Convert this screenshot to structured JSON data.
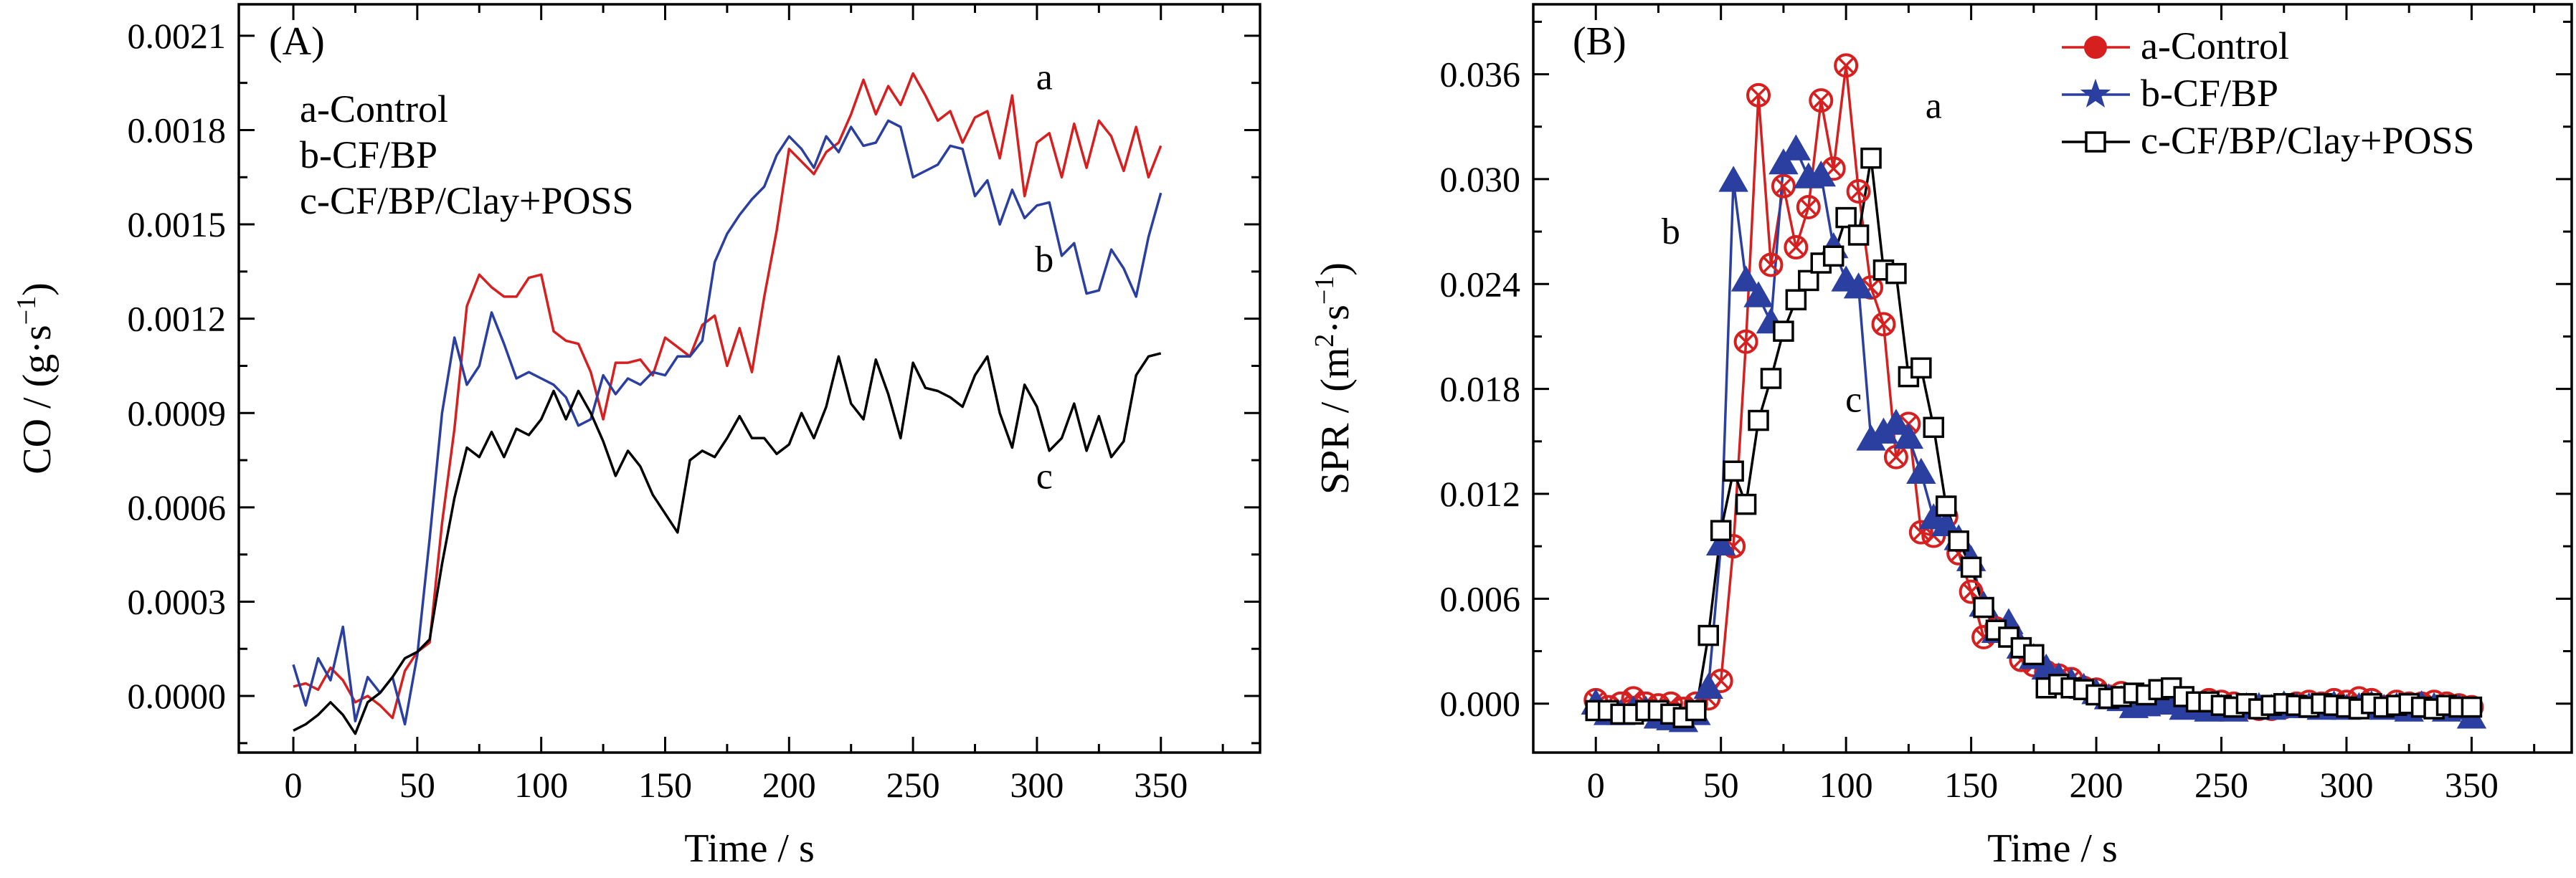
{
  "chart_data": [
    {
      "type": "line",
      "panel_label": "(A)",
      "xlabel": "Time / s",
      "ylabel_main": "CO / (g·s",
      "ylabel_sup": "−1",
      "ylabel_end": ")",
      "xlim": [
        -22,
        390
      ],
      "ylim": [
        -0.00018,
        0.0022
      ],
      "x_ticks": [
        0,
        50,
        100,
        150,
        200,
        250,
        300,
        350
      ],
      "x_tick_labels": [
        "0",
        "50",
        "100",
        "150",
        "200",
        "250",
        "300",
        "350"
      ],
      "y_ticks": [
        0.0,
        0.0003,
        0.0006,
        0.0009,
        0.0012,
        0.0015,
        0.0018,
        0.0021
      ],
      "y_tick_labels": [
        "0.0000",
        "0.0003",
        "0.0006",
        "0.0009",
        "0.0012",
        "0.0015",
        "0.0018",
        "0.0021"
      ],
      "grid": false,
      "legend_placement": "top-left",
      "legend": [
        "a-Control",
        "b-CF/BP",
        "c-CF/BP/Clay+POSS"
      ],
      "curve_labels": [
        {
          "text": "a",
          "x": 303,
          "y": 0.00193
        },
        {
          "text": "b",
          "x": 303,
          "y": 0.00135
        },
        {
          "text": "c",
          "x": 303,
          "y": 0.00066
        }
      ],
      "series": [
        {
          "color": "#d62020",
          "x": [
            0,
            5,
            10,
            15,
            20,
            25,
            30,
            35,
            40,
            45,
            50,
            55,
            60,
            65,
            70,
            75,
            80,
            85,
            90,
            95,
            100,
            105,
            110,
            115,
            120,
            125,
            130,
            135,
            140,
            145,
            150,
            155,
            160,
            165,
            170,
            175,
            180,
            185,
            190,
            195,
            200,
            205,
            210,
            215,
            220,
            225,
            230,
            235,
            240,
            245,
            250,
            255,
            260,
            265,
            270,
            275,
            280,
            285,
            290,
            295,
            300,
            305,
            310,
            315,
            320,
            325,
            330,
            335,
            340,
            345,
            350
          ],
          "y": [
            3e-05,
            4e-05,
            2e-05,
            9e-05,
            5e-05,
            -2e-05,
            0.0,
            -3e-05,
            -7e-05,
            8e-05,
            0.00014,
            0.00017,
            0.00055,
            0.00085,
            0.00124,
            0.00134,
            0.0013,
            0.00127,
            0.00127,
            0.00133,
            0.00134,
            0.00116,
            0.00113,
            0.00112,
            0.00103,
            0.00088,
            0.00106,
            0.00106,
            0.00107,
            0.00102,
            0.00114,
            0.00111,
            0.00108,
            0.00118,
            0.00121,
            0.00105,
            0.00117,
            0.00103,
            0.00127,
            0.00148,
            0.00174,
            0.0017,
            0.00166,
            0.00173,
            0.00176,
            0.00185,
            0.00196,
            0.00185,
            0.00194,
            0.00188,
            0.00198,
            0.00191,
            0.00183,
            0.00186,
            0.00176,
            0.00184,
            0.00186,
            0.00171,
            0.00191,
            0.00159,
            0.00176,
            0.00179,
            0.00165,
            0.00182,
            0.00168,
            0.00183,
            0.00178,
            0.00167,
            0.00181,
            0.00165,
            0.00175
          ]
        },
        {
          "color": "#2a3fa0",
          "x": [
            0,
            5,
            10,
            15,
            20,
            25,
            30,
            35,
            40,
            45,
            50,
            55,
            60,
            65,
            70,
            75,
            80,
            85,
            90,
            95,
            100,
            105,
            110,
            115,
            120,
            125,
            130,
            135,
            140,
            145,
            150,
            155,
            160,
            165,
            170,
            175,
            180,
            185,
            190,
            195,
            200,
            205,
            210,
            215,
            220,
            225,
            230,
            235,
            240,
            245,
            250,
            255,
            260,
            265,
            270,
            275,
            280,
            285,
            290,
            295,
            300,
            305,
            310,
            315,
            320,
            325,
            330,
            335,
            340,
            345,
            350
          ],
          "y": [
            0.0001,
            -3e-05,
            0.00012,
            5e-05,
            0.00022,
            -8e-05,
            6e-05,
            1e-05,
            6e-05,
            -9e-05,
            0.00013,
            0.0005,
            0.0009,
            0.00114,
            0.00099,
            0.00105,
            0.00122,
            0.00112,
            0.00101,
            0.00103,
            0.00101,
            0.00099,
            0.00095,
            0.00086,
            0.00088,
            0.00102,
            0.00096,
            0.00101,
            0.00099,
            0.00103,
            0.00102,
            0.00108,
            0.00108,
            0.00113,
            0.00138,
            0.00147,
            0.00153,
            0.00158,
            0.00162,
            0.00172,
            0.00178,
            0.00174,
            0.00168,
            0.00178,
            0.00173,
            0.00181,
            0.00175,
            0.00176,
            0.00183,
            0.00181,
            0.00165,
            0.00167,
            0.00169,
            0.00175,
            0.00174,
            0.00159,
            0.00164,
            0.0015,
            0.00161,
            0.00152,
            0.00156,
            0.00157,
            0.0014,
            0.00144,
            0.00128,
            0.00129,
            0.00142,
            0.00136,
            0.00127,
            0.00146,
            0.0016
          ]
        },
        {
          "color": "#000000",
          "x": [
            0,
            5,
            10,
            15,
            20,
            25,
            30,
            35,
            40,
            45,
            50,
            55,
            60,
            65,
            70,
            75,
            80,
            85,
            90,
            95,
            100,
            105,
            110,
            115,
            120,
            125,
            130,
            135,
            140,
            145,
            150,
            155,
            160,
            165,
            170,
            175,
            180,
            185,
            190,
            195,
            200,
            205,
            210,
            215,
            220,
            225,
            230,
            235,
            240,
            245,
            250,
            255,
            260,
            265,
            270,
            275,
            280,
            285,
            290,
            295,
            300,
            305,
            310,
            315,
            320,
            325,
            330,
            335,
            340,
            345,
            350
          ],
          "y": [
            -0.00011,
            -9e-05,
            -6e-05,
            -2e-05,
            -6e-05,
            -0.00012,
            -2e-05,
            1e-05,
            6e-05,
            0.00012,
            0.00014,
            0.00018,
            0.00042,
            0.00063,
            0.00079,
            0.00076,
            0.00084,
            0.00076,
            0.00085,
            0.00083,
            0.00088,
            0.00097,
            0.00088,
            0.00097,
            0.0009,
            0.00081,
            0.0007,
            0.00078,
            0.00073,
            0.00064,
            0.00058,
            0.00052,
            0.00075,
            0.00078,
            0.00076,
            0.00082,
            0.00089,
            0.00082,
            0.00082,
            0.00077,
            0.0008,
            0.0009,
            0.00082,
            0.00092,
            0.00108,
            0.00093,
            0.00088,
            0.00107,
            0.00096,
            0.00082,
            0.00106,
            0.00098,
            0.00097,
            0.00095,
            0.00092,
            0.00102,
            0.00108,
            0.0009,
            0.00079,
            0.00099,
            0.00092,
            0.00078,
            0.00082,
            0.00093,
            0.00078,
            0.00089,
            0.00076,
            0.00081,
            0.00102,
            0.00108,
            0.00109
          ]
        }
      ]
    },
    {
      "type": "line",
      "panel_label": "(B)",
      "xlabel": "Time / s",
      "ylabel_main": "SPR / (m",
      "ylabel_sup": "2",
      "ylabel_mid": "·s",
      "ylabel_sup2": "−1",
      "ylabel_end": ")",
      "xlim": [
        -25,
        390
      ],
      "ylim": [
        -0.0028,
        0.04
      ],
      "x_ticks": [
        0,
        50,
        100,
        150,
        200,
        250,
        300,
        350
      ],
      "x_tick_labels": [
        "0",
        "50",
        "100",
        "150",
        "200",
        "250",
        "300",
        "350"
      ],
      "y_ticks": [
        0.0,
        0.006,
        0.012,
        0.018,
        0.024,
        0.03,
        0.036
      ],
      "y_tick_labels": [
        "0.000",
        "0.006",
        "0.012",
        "0.018",
        "0.024",
        "0.030",
        "0.036"
      ],
      "grid": false,
      "legend_placement": "top-right",
      "legend": [
        "a-Control",
        "b-CF/BP",
        "c-CF/BP/Clay+POSS"
      ],
      "curve_labels": [
        {
          "text": "a",
          "x": 135,
          "y": 0.0335
        },
        {
          "text": "b",
          "x": 30,
          "y": 0.0263
        },
        {
          "text": "c",
          "x": 103,
          "y": 0.0167
        }
      ],
      "series": [
        {
          "color": "#d62020",
          "marker": "circle-x",
          "x": [
            0,
            5,
            10,
            15,
            20,
            25,
            30,
            35,
            40,
            45,
            50,
            55,
            60,
            65,
            70,
            75,
            80,
            85,
            90,
            95,
            100,
            105,
            110,
            115,
            120,
            125,
            130,
            135,
            140,
            145,
            150,
            155,
            160,
            165,
            170,
            175,
            180,
            185,
            190,
            195,
            200,
            205,
            210,
            215,
            220,
            225,
            230,
            235,
            240,
            245,
            250,
            255,
            260,
            265,
            270,
            275,
            280,
            285,
            290,
            295,
            300,
            305,
            310,
            315,
            320,
            325,
            330,
            335,
            340,
            345,
            350
          ],
          "y": [
            0.0002,
            -0.0002,
            0.0,
            0.0003,
            0.0,
            -0.0001,
            0.0,
            -0.0003,
            0.0,
            0.0003,
            0.0013,
            0.009,
            0.0207,
            0.0348,
            0.0251,
            0.0296,
            0.0261,
            0.0284,
            0.0345,
            0.0306,
            0.0365,
            0.0293,
            0.0238,
            0.0217,
            0.0141,
            0.016,
            0.0098,
            0.0096,
            0.0107,
            0.0086,
            0.0064,
            0.0038,
            0.0043,
            0.0041,
            0.0025,
            0.0022,
            0.0018,
            0.0016,
            0.0014,
            0.0009,
            0.0008,
            0.0004,
            0.0006,
            0.0003,
            0.0001,
            0.0002,
            0.0004,
            0.0,
            -0.0001,
            0.0002,
            0.0001,
            0.0,
            -0.0002,
            -0.0003,
            -0.0003,
            -0.0002,
            0.0,
            0.0001,
            0.0,
            0.0002,
            0.0001,
            0.0003,
            0.0002,
            -0.0002,
            0.0001,
            0.0,
            0.0,
            0.0001,
            0.0,
            -0.0001,
            -0.0002
          ]
        },
        {
          "color": "#2a3fa0",
          "marker": "triangle",
          "x": [
            0,
            5,
            10,
            15,
            20,
            25,
            30,
            35,
            40,
            45,
            50,
            55,
            60,
            65,
            70,
            75,
            80,
            85,
            90,
            95,
            100,
            105,
            110,
            115,
            120,
            125,
            130,
            135,
            140,
            145,
            150,
            155,
            160,
            165,
            170,
            175,
            180,
            185,
            190,
            195,
            200,
            205,
            210,
            215,
            220,
            225,
            230,
            235,
            240,
            245,
            250,
            255,
            260,
            265,
            270,
            275,
            280,
            285,
            290,
            295,
            300,
            305,
            310,
            315,
            320,
            325,
            330,
            335,
            340,
            345,
            350
          ],
          "y": [
            0.0,
            -0.0006,
            -0.0006,
            -0.0004,
            -0.0004,
            -0.0008,
            -0.0009,
            -0.001,
            -0.0006,
            0.0009,
            0.0091,
            0.0299,
            0.0242,
            0.0233,
            0.0218,
            0.0309,
            0.0317,
            0.0301,
            0.0302,
            0.0261,
            0.0242,
            0.0238,
            0.0151,
            0.0155,
            0.016,
            0.0152,
            0.0132,
            0.0106,
            0.0102,
            0.0094,
            0.0082,
            0.0056,
            0.0041,
            0.0046,
            0.0032,
            0.0026,
            0.002,
            0.0015,
            0.0012,
            0.0009,
            0.0006,
            0.0003,
            0.0002,
            -0.0002,
            -0.0001,
            0.0,
            0.0,
            -0.0003,
            -0.0002,
            -0.0004,
            -0.0003,
            -0.0004,
            -0.0002,
            -0.0002,
            -0.0003,
            -0.0001,
            -0.0002,
            -0.0002,
            -0.0003,
            -0.0001,
            -0.0003,
            -0.0002,
            -0.0001,
            -0.0003,
            -0.0002,
            -0.0004,
            -0.0001,
            -0.0002,
            -0.0004,
            -0.0003,
            -0.0008
          ]
        },
        {
          "color": "#000000",
          "marker": "square-open",
          "x": [
            0,
            5,
            10,
            15,
            20,
            25,
            30,
            35,
            40,
            45,
            50,
            55,
            60,
            65,
            70,
            75,
            80,
            85,
            90,
            95,
            100,
            105,
            110,
            115,
            120,
            125,
            130,
            135,
            140,
            145,
            150,
            155,
            160,
            165,
            170,
            175,
            180,
            185,
            190,
            195,
            200,
            205,
            210,
            215,
            220,
            225,
            230,
            235,
            240,
            245,
            250,
            255,
            260,
            265,
            270,
            275,
            280,
            285,
            290,
            295,
            300,
            305,
            310,
            315,
            320,
            325,
            330,
            335,
            340,
            345,
            350
          ],
          "y": [
            -0.0004,
            -0.0004,
            -0.0006,
            -0.0006,
            -0.0004,
            -0.0004,
            -0.0006,
            -0.0008,
            -0.0004,
            0.0039,
            0.0099,
            0.0133,
            0.0114,
            0.0162,
            0.0186,
            0.0213,
            0.0231,
            0.0242,
            0.0252,
            0.0256,
            0.0278,
            0.0268,
            0.0312,
            0.0248,
            0.0246,
            0.0187,
            0.0192,
            0.0158,
            0.0113,
            0.0093,
            0.0078,
            0.0055,
            0.0042,
            0.0038,
            0.0032,
            0.0028,
            0.0009,
            0.0011,
            0.0009,
            0.0008,
            0.0005,
            0.0003,
            0.0004,
            0.0006,
            0.0005,
            0.0008,
            0.0009,
            0.0004,
            0.0001,
            0.0001,
            -0.0001,
            -0.0002,
            0.0,
            -0.0003,
            -0.0001,
            0.0,
            -0.0001,
            -0.0002,
            0.0,
            -0.0001,
            -0.0002,
            -0.0003,
            0.0,
            -0.0002,
            -0.0001,
            0.0,
            -0.0002,
            -0.0003,
            -0.0001,
            -0.0002,
            -0.0002
          ]
        }
      ]
    }
  ]
}
